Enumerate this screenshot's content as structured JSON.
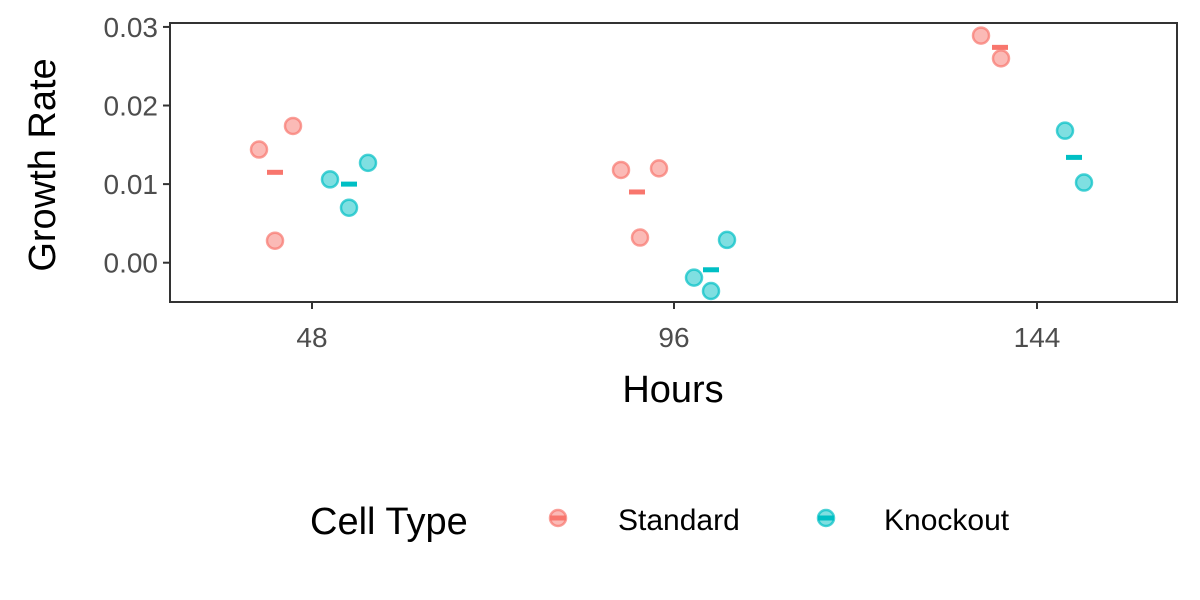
{
  "chart_data": {
    "type": "scatter",
    "xlabel": "Hours",
    "ylabel": "Growth Rate",
    "categories": [
      "48",
      "96",
      "144"
    ],
    "ylim": [
      -0.005,
      0.0305
    ],
    "yticks": [
      "0.00",
      "0.01",
      "0.02",
      "0.03"
    ],
    "ytick_values": [
      0.0,
      0.01,
      0.02,
      0.03
    ],
    "grid": false,
    "legend": {
      "title": "Cell Type",
      "placement": "bottom",
      "entries": [
        "Standard",
        "Knockout"
      ]
    },
    "series": [
      {
        "name": "Standard",
        "color": "#F8766D",
        "points": [
          {
            "x": "48",
            "y": 0.0144
          },
          {
            "x": "48",
            "y": 0.0174
          },
          {
            "x": "48",
            "y": 0.0028
          },
          {
            "x": "96",
            "y": 0.0118
          },
          {
            "x": "96",
            "y": 0.012
          },
          {
            "x": "96",
            "y": 0.0032
          },
          {
            "x": "144",
            "y": 0.0289
          },
          {
            "x": "144",
            "y": 0.026
          }
        ],
        "means": [
          {
            "x": "48",
            "y": 0.0115
          },
          {
            "x": "96",
            "y": 0.009
          },
          {
            "x": "144",
            "y": 0.0274
          }
        ]
      },
      {
        "name": "Knockout",
        "color": "#00BFC4",
        "points": [
          {
            "x": "48",
            "y": 0.0106
          },
          {
            "x": "48",
            "y": 0.0127
          },
          {
            "x": "48",
            "y": 0.007
          },
          {
            "x": "96",
            "y": -0.0019
          },
          {
            "x": "96",
            "y": 0.0029
          },
          {
            "x": "96",
            "y": -0.0036
          },
          {
            "x": "144",
            "y": 0.0168
          },
          {
            "x": "144",
            "y": 0.0102
          }
        ],
        "means": [
          {
            "x": "48",
            "y": 0.01
          },
          {
            "x": "96",
            "y": -0.0009
          },
          {
            "x": "144",
            "y": 0.0134
          }
        ]
      }
    ]
  }
}
